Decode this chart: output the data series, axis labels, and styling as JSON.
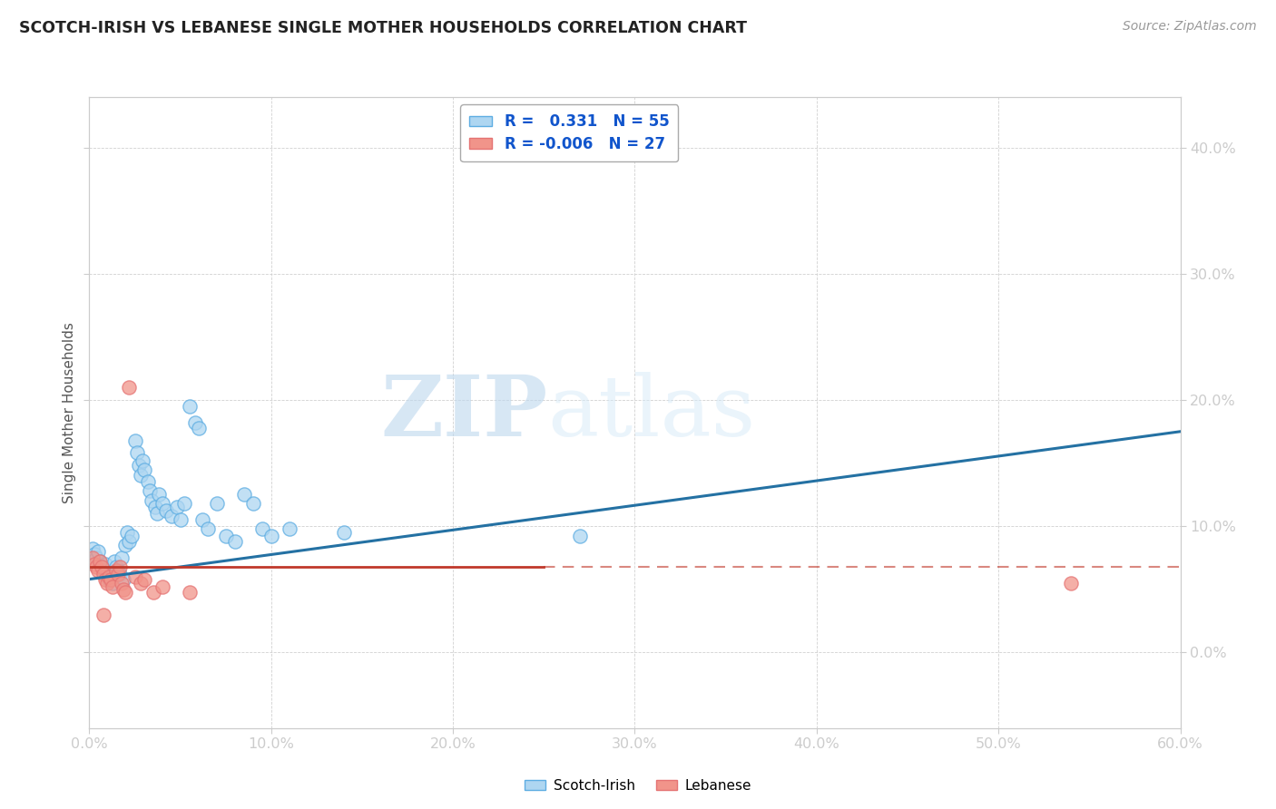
{
  "title": "SCOTCH-IRISH VS LEBANESE SINGLE MOTHER HOUSEHOLDS CORRELATION CHART",
  "source": "Source: ZipAtlas.com",
  "ylabel": "Single Mother Households",
  "xlim": [
    0.0,
    0.6
  ],
  "ylim": [
    -0.06,
    0.44
  ],
  "xticks": [
    0.0,
    0.1,
    0.2,
    0.3,
    0.4,
    0.5,
    0.6
  ],
  "xtick_labels": [
    "0.0%",
    "10.0%",
    "20.0%",
    "30.0%",
    "40.0%",
    "50.0%",
    "60.0%"
  ],
  "yticks": [
    0.0,
    0.1,
    0.2,
    0.3,
    0.4
  ],
  "ytick_labels": [
    "0.0%",
    "10.0%",
    "20.0%",
    "30.0%",
    "40.0%"
  ],
  "blue_R": "0.331",
  "blue_N": "55",
  "pink_R": "-0.006",
  "pink_N": "27",
  "blue_color": "#AED6F1",
  "pink_color": "#F1948A",
  "blue_edge_color": "#5DADE2",
  "pink_edge_color": "#E57373",
  "blue_line_color": "#2471A3",
  "pink_line_color": "#C0392B",
  "watermark_zip": "ZIP",
  "watermark_atlas": "atlas",
  "scotch_irish_points": [
    [
      0.002,
      0.082
    ],
    [
      0.003,
      0.078
    ],
    [
      0.004,
      0.075
    ],
    [
      0.005,
      0.08
    ],
    [
      0.006,
      0.072
    ],
    [
      0.007,
      0.068
    ],
    [
      0.008,
      0.065
    ],
    [
      0.009,
      0.07
    ],
    [
      0.01,
      0.062
    ],
    [
      0.011,
      0.058
    ],
    [
      0.012,
      0.06
    ],
    [
      0.013,
      0.055
    ],
    [
      0.014,
      0.072
    ],
    [
      0.015,
      0.068
    ],
    [
      0.016,
      0.065
    ],
    [
      0.017,
      0.062
    ],
    [
      0.018,
      0.075
    ],
    [
      0.019,
      0.058
    ],
    [
      0.02,
      0.085
    ],
    [
      0.021,
      0.095
    ],
    [
      0.022,
      0.088
    ],
    [
      0.023,
      0.092
    ],
    [
      0.025,
      0.168
    ],
    [
      0.026,
      0.158
    ],
    [
      0.027,
      0.148
    ],
    [
      0.028,
      0.14
    ],
    [
      0.029,
      0.152
    ],
    [
      0.03,
      0.145
    ],
    [
      0.032,
      0.135
    ],
    [
      0.033,
      0.128
    ],
    [
      0.034,
      0.12
    ],
    [
      0.036,
      0.115
    ],
    [
      0.037,
      0.11
    ],
    [
      0.038,
      0.125
    ],
    [
      0.04,
      0.118
    ],
    [
      0.042,
      0.112
    ],
    [
      0.045,
      0.108
    ],
    [
      0.048,
      0.115
    ],
    [
      0.05,
      0.105
    ],
    [
      0.052,
      0.118
    ],
    [
      0.055,
      0.195
    ],
    [
      0.058,
      0.182
    ],
    [
      0.06,
      0.178
    ],
    [
      0.062,
      0.105
    ],
    [
      0.065,
      0.098
    ],
    [
      0.07,
      0.118
    ],
    [
      0.075,
      0.092
    ],
    [
      0.08,
      0.088
    ],
    [
      0.085,
      0.125
    ],
    [
      0.09,
      0.118
    ],
    [
      0.095,
      0.098
    ],
    [
      0.1,
      0.092
    ],
    [
      0.11,
      0.098
    ],
    [
      0.14,
      0.095
    ],
    [
      0.27,
      0.092
    ]
  ],
  "lebanese_points": [
    [
      0.002,
      0.075
    ],
    [
      0.003,
      0.07
    ],
    [
      0.004,
      0.068
    ],
    [
      0.005,
      0.065
    ],
    [
      0.006,
      0.072
    ],
    [
      0.007,
      0.068
    ],
    [
      0.008,
      0.062
    ],
    [
      0.009,
      0.058
    ],
    [
      0.01,
      0.055
    ],
    [
      0.011,
      0.06
    ],
    [
      0.012,
      0.058
    ],
    [
      0.013,
      0.052
    ],
    [
      0.015,
      0.065
    ],
    [
      0.016,
      0.062
    ],
    [
      0.017,
      0.068
    ],
    [
      0.018,
      0.055
    ],
    [
      0.019,
      0.05
    ],
    [
      0.02,
      0.048
    ],
    [
      0.022,
      0.21
    ],
    [
      0.025,
      0.06
    ],
    [
      0.028,
      0.055
    ],
    [
      0.03,
      0.058
    ],
    [
      0.035,
      0.048
    ],
    [
      0.04,
      0.052
    ],
    [
      0.055,
      0.048
    ],
    [
      0.008,
      0.03
    ],
    [
      0.54,
      0.055
    ]
  ],
  "blue_trend": [
    0.0,
    0.058,
    0.6,
    0.175
  ],
  "pink_trend": [
    0.0,
    0.068,
    0.6,
    0.068
  ],
  "pink_trend_solid_end": 0.25,
  "marker_size": 120
}
